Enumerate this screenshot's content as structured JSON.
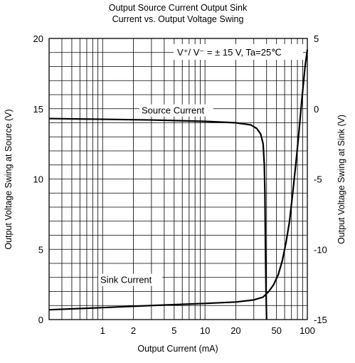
{
  "chart_data": {
    "type": "line",
    "title_line1": "Output Source Current Output Sink",
    "title_line2": "Current vs. Output Voltage Swing",
    "xlabel": "Output Current (mA)",
    "ylabel_left": "Output Voltage Swing at Source (V)",
    "ylabel_right": "Output Voltage Swing at Sink (V)",
    "x_scale": "log",
    "xlim": [
      0.3,
      100
    ],
    "ylim_left": [
      0,
      20
    ],
    "ylim_right": [
      -15,
      5
    ],
    "x_ticks": [
      {
        "value": 1,
        "label": "1"
      },
      {
        "value": 2,
        "label": "2"
      },
      {
        "value": 5,
        "label": "5"
      },
      {
        "value": 10,
        "label": "10"
      },
      {
        "value": 20,
        "label": "20"
      },
      {
        "value": 50,
        "label": "50"
      },
      {
        "value": 100,
        "label": "100"
      }
    ],
    "y_ticks_left": [
      {
        "value": 0,
        "label": "0"
      },
      {
        "value": 5,
        "label": "5"
      },
      {
        "value": 10,
        "label": "10"
      },
      {
        "value": 15,
        "label": "15"
      },
      {
        "value": 20,
        "label": "20"
      }
    ],
    "y_ticks_right": [
      {
        "value": -15,
        "label": "-15"
      },
      {
        "value": -10,
        "label": "-10"
      },
      {
        "value": -5,
        "label": "-5"
      },
      {
        "value": 0,
        "label": "0"
      },
      {
        "value": 5,
        "label": "5"
      }
    ],
    "grid": true,
    "annotation": "V⁺/ V⁻ = ± 15 V, Ta=25℃",
    "series": [
      {
        "name": "Source Current",
        "axis": "left",
        "x": [
          0.3,
          1,
          3,
          10,
          20,
          28,
          32,
          35,
          37,
          38,
          38.5,
          39,
          39.5,
          40
        ],
        "y": [
          14.3,
          14.25,
          14.2,
          14.1,
          14.0,
          13.85,
          13.6,
          13.2,
          12.5,
          11.0,
          9.0,
          5.0,
          2.0,
          0
        ]
      },
      {
        "name": "Sink Current",
        "axis": "right",
        "x": [
          0.3,
          1,
          3,
          10,
          20,
          30,
          37,
          42,
          47,
          52,
          57,
          62,
          67,
          72,
          77,
          82,
          88,
          95,
          100
        ],
        "y": [
          -14.3,
          -14.15,
          -14.0,
          -13.85,
          -13.75,
          -13.6,
          -13.4,
          -13.0,
          -12.5,
          -11.8,
          -10.8,
          -9.5,
          -8.0,
          -6.0,
          -4.0,
          -2.0,
          0.5,
          3.0,
          4.2
        ]
      }
    ]
  }
}
